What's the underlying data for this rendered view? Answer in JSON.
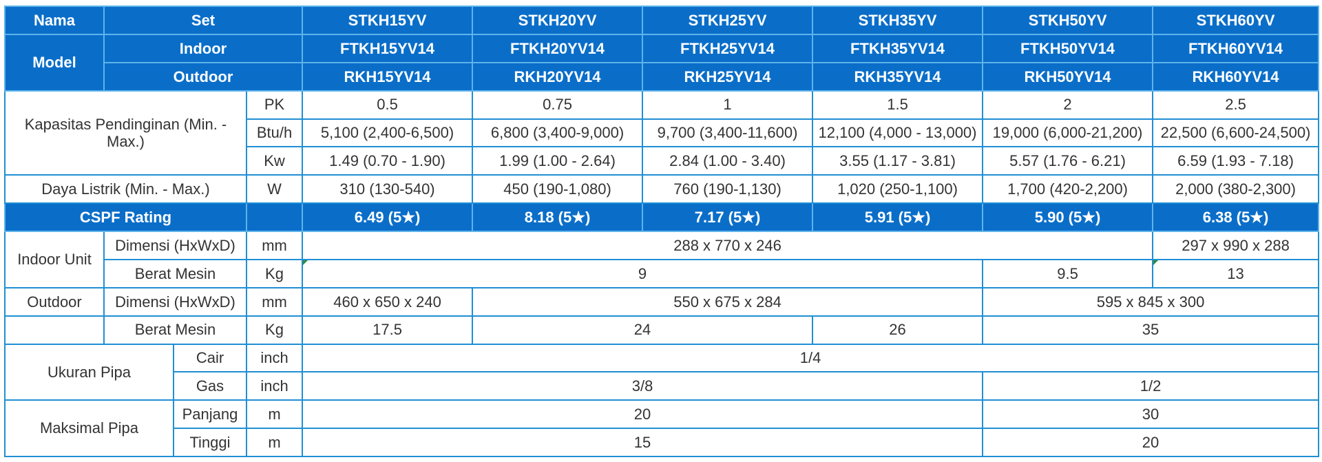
{
  "header": {
    "nama": "Nama",
    "set": "Set",
    "model": "Model",
    "indoor": "Indoor",
    "outdoor": "Outdoor",
    "sets": [
      "STKH15YV",
      "STKH20YV",
      "STKH25YV",
      "STKH35YV",
      "STKH50YV",
      "STKH60YV"
    ],
    "indoor_models": [
      "FTKH15YV14",
      "FTKH20YV14",
      "FTKH25YV14",
      "FTKH35YV14",
      "FTKH50YV14",
      "FTKH60YV14"
    ],
    "outdoor_models": [
      "RKH15YV14",
      "RKH20YV14",
      "RKH25YV14",
      "RKH35YV14",
      "RKH50YV14",
      "RKH60YV14"
    ]
  },
  "capacity": {
    "label": "Kapasitas Pendinginan (Min. - Max.)",
    "pk_unit": "PK",
    "pk": [
      "0.5",
      "0.75",
      "1",
      "1.5",
      "2",
      "2.5"
    ],
    "btu_unit": "Btu/h",
    "btu": [
      "5,100 (2,400-6,500)",
      "6,800 (3,400-9,000)",
      "9,700 (3,400-11,600)",
      "12,100 (4,000 - 13,000)",
      "19,000 (6,000-21,200)",
      "22,500 (6,600-24,500)"
    ],
    "kw_unit": "Kw",
    "kw": [
      "1.49 (0.70 - 1.90)",
      "1.99 (1.00 - 2.64)",
      "2.84 (1.00 - 3.40)",
      "3.55 (1.17 - 3.81)",
      "5.57 (1.76 - 6.21)",
      "6.59 (1.93 - 7.18)"
    ]
  },
  "power": {
    "label": "Daya Listrik (Min. - Max.)",
    "unit": "W",
    "values": [
      "310 (130-540)",
      "450 (190-1,080)",
      "760 (190-1,130)",
      "1,020 (250-1,100)",
      "1,700 (420-2,200)",
      "2,000 (380-2,300)"
    ]
  },
  "cspf": {
    "label": "CSPF Rating",
    "values": [
      "6.49 (5★)",
      "8.18 (5★)",
      "7.17 (5★)",
      "5.91 (5★)",
      "5.90 (5★)",
      "6.38 (5★)"
    ]
  },
  "indoor_unit": {
    "label": "Indoor Unit",
    "dim_label": "Dimensi (HxWxD)",
    "dim_unit": "mm",
    "dim_a": "288 x 770 x 246",
    "dim_b": "297 x 990 x 288",
    "weight_label": "Berat Mesin",
    "weight_unit": "Kg",
    "weight_a": "9",
    "weight_b": "9.5",
    "weight_c": "13"
  },
  "outdoor_unit": {
    "label": "Outdoor",
    "dim_label": "Dimensi (HxWxD)",
    "dim_unit": "mm",
    "dim_a": "460 x 650 x 240",
    "dim_b": "550 x 675 x 284",
    "dim_c": "595 x 845 x 300",
    "weight_label": "Berat Mesin",
    "weight_unit": "Kg",
    "weight_a": "17.5",
    "weight_b": "24",
    "weight_c": "26",
    "weight_d": "35"
  },
  "pipe_size": {
    "label": "Ukuran Pipa",
    "liquid_label": "Cair",
    "liquid_unit": "inch",
    "liquid": "1/4",
    "gas_label": "Gas",
    "gas_unit": "inch",
    "gas_a": "3/8",
    "gas_b": "1/2"
  },
  "pipe_max": {
    "label": "Maksimal Pipa",
    "length_label": "Panjang",
    "length_unit": "m",
    "length_a": "20",
    "length_b": "30",
    "height_label": "Tinggi",
    "height_unit": "m",
    "height_a": "15",
    "height_b": "20"
  },
  "colors": {
    "header_bg": "#0a6ec9",
    "border": "#1f8fd4",
    "text": "#333333"
  }
}
